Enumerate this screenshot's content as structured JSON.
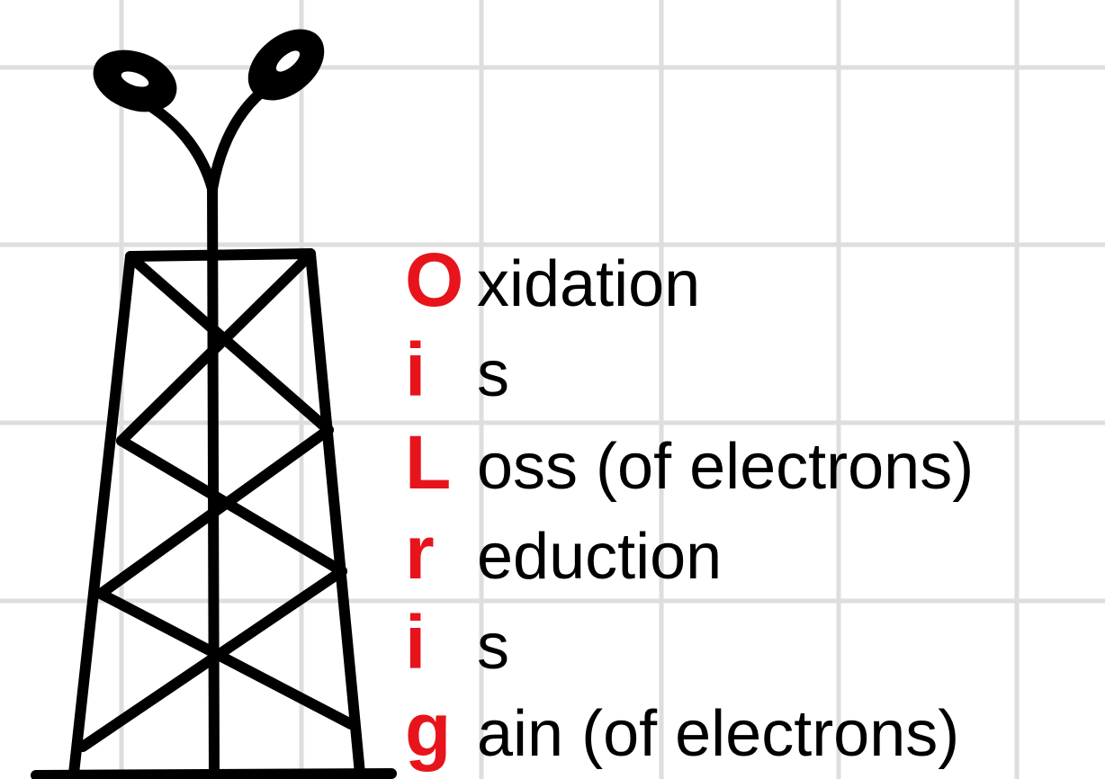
{
  "mnemonic": {
    "lines": [
      {
        "initial": "O",
        "rest": "xidation"
      },
      {
        "initial": "i",
        "rest": "s"
      },
      {
        "initial": "L",
        "rest": "oss (of electrons)"
      },
      {
        "initial": "r",
        "rest": "eduction"
      },
      {
        "initial": "i",
        "rest": "s"
      },
      {
        "initial": "g",
        "rest": "ain (of electrons)"
      }
    ]
  }
}
